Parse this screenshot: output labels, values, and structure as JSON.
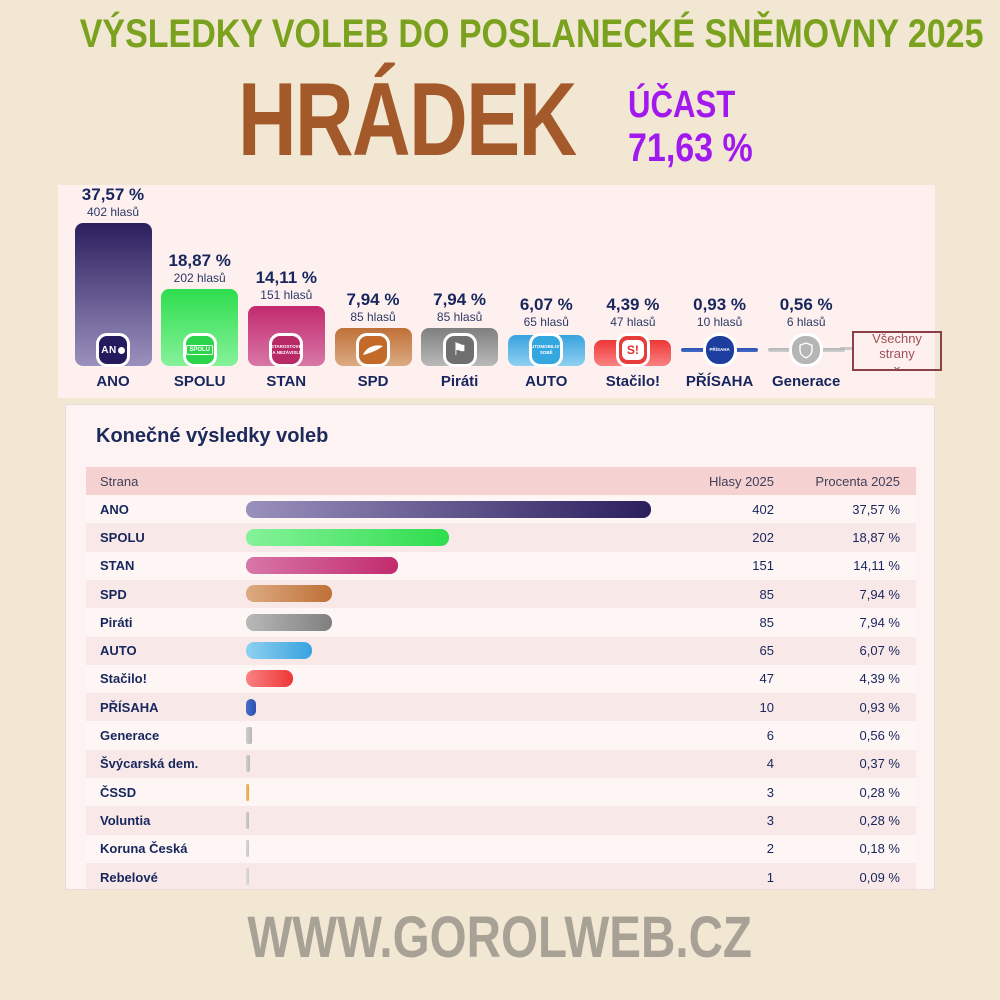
{
  "header": {
    "title": "VÝSLEDKY VOLEB DO POSLANECKÉ SNĚMOVNY 2025",
    "municipality": "HRÁDEK",
    "turnout_label": "ÚČAST",
    "turnout_value": "71,63 %"
  },
  "chart": {
    "all_parties_button": "Všechny strany",
    "chevron_icon": "⌄",
    "votes_suffix": "hlasů"
  },
  "table": {
    "title": "Konečné výsledky voleb",
    "columns": [
      "Strana",
      "Hlasy 2025",
      "Procenta 2025"
    ]
  },
  "footer": {
    "site": "WWW.GOROLWEB.CZ"
  },
  "colors": {
    "background": "#f1e7d3",
    "chart_panel": "#fdf0ef",
    "table_panel": "#fcf3f2",
    "table_header_row": "#f5d2d1",
    "row_light": "#fdf6f5",
    "row_pink": "#f9e8e8",
    "navy_text": "#17265c",
    "title_green": "#7aa21e",
    "municipality_brown": "#a3592a",
    "turnout_purple": "#a219ef",
    "footer_gray": "#a7a196"
  },
  "parties": [
    {
      "name": "ANO",
      "votes": 402,
      "votes_text": "402 hlasů",
      "percent": 37.57,
      "percent_text": "37,57 %",
      "color": "#2b1f5e",
      "color_light": "#9a91bd",
      "icon": "ano",
      "icon_bg": "#241a5e",
      "chart": true
    },
    {
      "name": "SPOLU",
      "votes": 202,
      "votes_text": "202 hlasů",
      "percent": 18.87,
      "percent_text": "18,87 %",
      "color": "#2edd4d",
      "color_light": "#86f29a",
      "icon": "spolu",
      "icon_bg": "#2bd44a",
      "chart": true
    },
    {
      "name": "STAN",
      "votes": 151,
      "votes_text": "151 hlasů",
      "percent": 14.11,
      "percent_text": "14,11 %",
      "color": "#c22a6e",
      "color_light": "#d877a8",
      "icon": "stan",
      "icon_bg": "#b72a66",
      "chart": true
    },
    {
      "name": "SPD",
      "votes": 85,
      "votes_text": "85 hlasů",
      "percent": 7.94,
      "percent_text": "7,94 %",
      "color": "#bf7038",
      "color_light": "#dcab82",
      "icon": "spd",
      "icon_bg": "#c36a2a",
      "chart": true
    },
    {
      "name": "Piráti",
      "votes": 85,
      "votes_text": "85 hlasů",
      "percent": 7.94,
      "percent_text": "7,94 %",
      "color": "#7f7f7f",
      "color_light": "#b9b9b9",
      "icon": "pirati",
      "icon_bg": "#6f6f6f",
      "chart": true
    },
    {
      "name": "AUTO",
      "votes": 65,
      "votes_text": "65 hlasů",
      "percent": 6.07,
      "percent_text": "6,07 %",
      "color": "#38a3df",
      "color_light": "#8fd0f0",
      "icon": "auto",
      "icon_bg": "#35a7e0",
      "chart": true
    },
    {
      "name": "Stačilo!",
      "votes": 47,
      "votes_text": "47 hlasů",
      "percent": 4.39,
      "percent_text": "4,39 %",
      "color": "#ee3636",
      "color_light": "#fa8282",
      "icon": "stacilo",
      "icon_bg": "#e63c3c",
      "chart": true
    },
    {
      "name": "PŘÍSAHA",
      "votes": 10,
      "votes_text": "10 hlasů",
      "percent": 0.93,
      "percent_text": "0,93 %",
      "color": "#2a52b4",
      "color_light": "#466cc4",
      "icon": "prisaha",
      "icon_bg": "#1d3e9e",
      "chart": true
    },
    {
      "name": "Generace",
      "votes": 6,
      "votes_text": "6 hlasů",
      "percent": 0.56,
      "percent_text": "0,56 %",
      "color": "#b5b5b5",
      "color_light": "#cfcfcf",
      "icon": "generace",
      "icon_bg": "#b5b5b5",
      "chart": true
    },
    {
      "name": "Švýcarská dem.",
      "votes": 4,
      "percent": 0.37,
      "percent_text": "0,37 %",
      "color": "#b9b9b9",
      "color_light": "#d0d0d0",
      "chart": false
    },
    {
      "name": "ČSSD",
      "votes": 3,
      "percent": 0.28,
      "percent_text": "0,28 %",
      "color": "#f29e38",
      "color_light": "#f7bd74",
      "chart": false
    },
    {
      "name": "Voluntia",
      "votes": 3,
      "percent": 0.28,
      "percent_text": "0,28 %",
      "color": "#b9b9b9",
      "color_light": "#d0d0d0",
      "chart": false
    },
    {
      "name": "Koruna Česká",
      "votes": 2,
      "percent": 0.18,
      "percent_text": "0,18 %",
      "color": "#c4c4c4",
      "color_light": "#d8d8d8",
      "chart": false
    },
    {
      "name": "Rebelové",
      "votes": 1,
      "percent": 0.09,
      "percent_text": "0,09 %",
      "color": "#cccccc",
      "color_light": "#dedede",
      "chart": false
    }
  ],
  "chart_data": {
    "type": "bar",
    "title": "Konečné výsledky voleb",
    "categories": [
      "ANO",
      "SPOLU",
      "STAN",
      "SPD",
      "Piráti",
      "AUTO",
      "Stačilo!",
      "PŘÍSAHA",
      "Generace",
      "Švýcarská dem.",
      "ČSSD",
      "Voluntia",
      "Koruna Česká",
      "Rebelové"
    ],
    "series": [
      {
        "name": "Hlasy 2025",
        "values": [
          402,
          202,
          151,
          85,
          85,
          65,
          47,
          10,
          6,
          4,
          3,
          3,
          2,
          1
        ]
      },
      {
        "name": "Procenta 2025",
        "values": [
          37.57,
          18.87,
          14.11,
          7.94,
          7.94,
          6.07,
          4.39,
          0.93,
          0.56,
          0.37,
          0.28,
          0.28,
          0.18,
          0.09
        ]
      }
    ],
    "xlabel": "Strana",
    "ylabel": "Hlasy",
    "legend_position": "none",
    "grid": false
  }
}
